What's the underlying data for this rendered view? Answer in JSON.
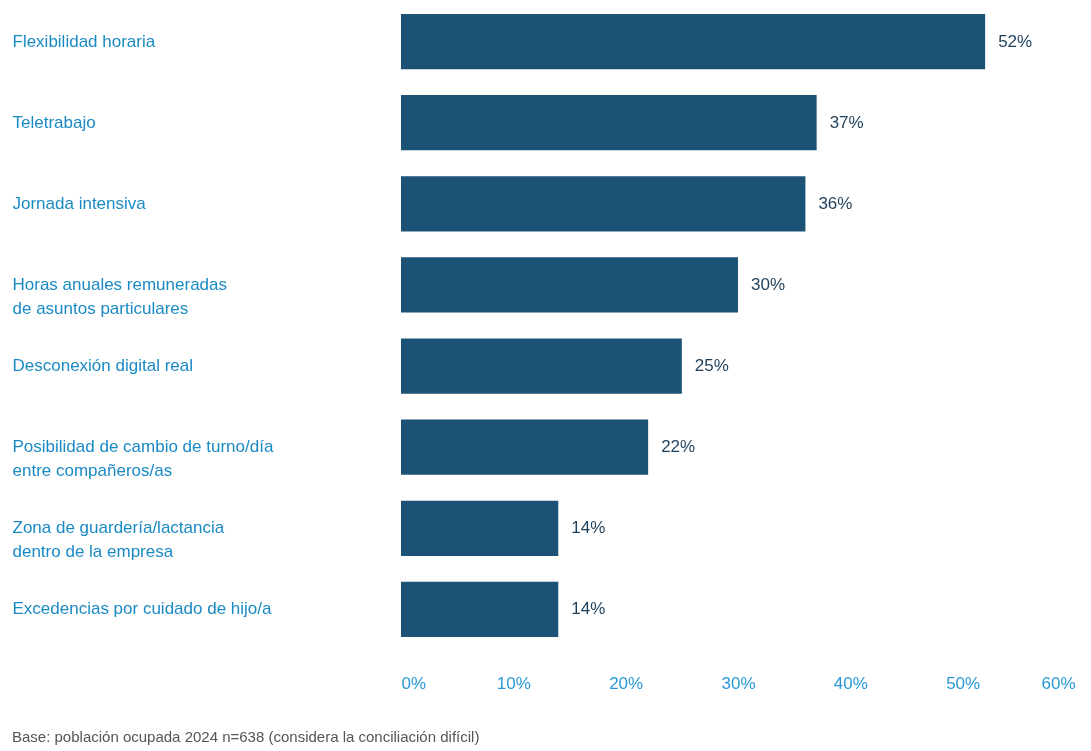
{
  "chart_data": {
    "type": "bar",
    "orientation": "horizontal",
    "categories": [
      "Flexibilidad horaria",
      "Teletrabajo",
      "Jornada intensiva",
      "Horas anuales remuneradas\nde asuntos particulares",
      "Desconexión digital real",
      "Posibilidad de cambio de turno/día\nentre compañeros/as",
      "Zona de guardería/lactancia\ndentro de la empresa",
      "Excedencias por cuidado de hijo/a"
    ],
    "values": [
      52,
      37,
      36,
      30,
      25,
      22,
      14,
      14
    ],
    "value_labels": [
      "52%",
      "37%",
      "36%",
      "30%",
      "25%",
      "22%",
      "14%",
      "14%"
    ],
    "color": "#1c5275",
    "xlim": [
      0,
      60
    ],
    "xticks": [
      {
        "value": 0,
        "label": "0%"
      },
      {
        "value": 10,
        "label": "10%"
      },
      {
        "value": 20,
        "label": "20%"
      },
      {
        "value": 30,
        "label": "30%"
      },
      {
        "value": 40,
        "label": "40%"
      },
      {
        "value": 50,
        "label": "50%"
      },
      {
        "value": 60,
        "label": "60%"
      }
    ],
    "grid": false,
    "annotations": [
      "Base: población ocupada 2024 n=638 (considera la conciliación difícil)"
    ]
  }
}
